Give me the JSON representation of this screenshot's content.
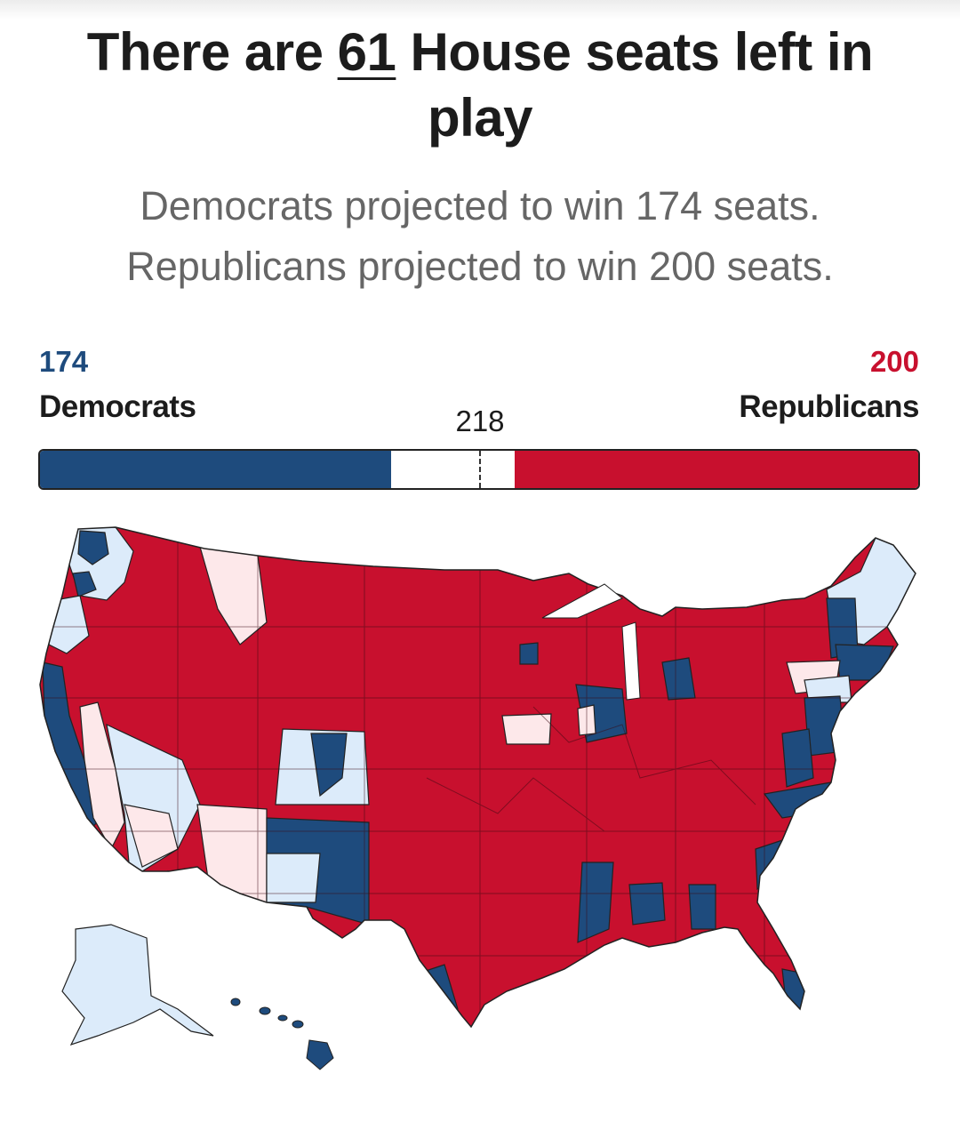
{
  "headline": {
    "prefix": "There are ",
    "number": "61",
    "suffix": " House seats left in play"
  },
  "subhead": {
    "line1": "Democrats projected to win 174 seats.",
    "line2": "Republicans projected to win 200 seats."
  },
  "seat_bar": {
    "total_seats": 435,
    "majority_threshold": 218,
    "majority_label": "218",
    "democrats": {
      "seats": 174,
      "count_label": "174",
      "label": "Democrats",
      "color": "#1e4b7d"
    },
    "republicans": {
      "seats": 200,
      "count_label": "200",
      "label": "Republicans",
      "color": "#c8102e"
    },
    "undecided_seats": 61
  },
  "map_legend_colors": {
    "dem_projected": "#1e4b7d",
    "rep_projected": "#c8102e",
    "dem_leaning": "#dcebfa",
    "rep_leaning": "#fde8ea",
    "border": "#222222"
  }
}
